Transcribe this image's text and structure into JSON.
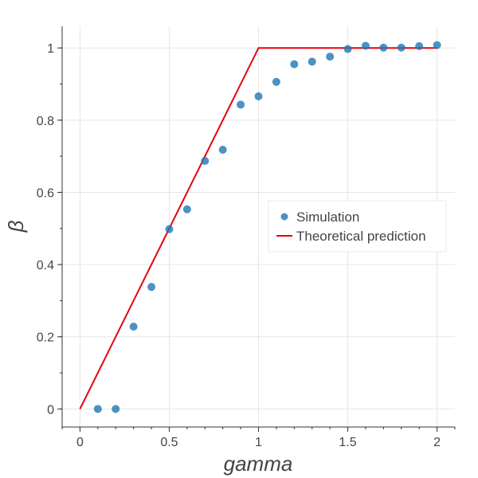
{
  "chart_data": {
    "type": "scatter",
    "title": "",
    "xlabel": "gamma",
    "ylabel": "β",
    "xlim": [
      -0.1,
      2.1
    ],
    "ylim": [
      -0.05,
      1.06
    ],
    "grid": true,
    "legend_position": "center-right",
    "x_ticks": [
      {
        "value": 0,
        "label": "0"
      },
      {
        "value": 0.5,
        "label": "0.5"
      },
      {
        "value": 1,
        "label": "1"
      },
      {
        "value": 1.5,
        "label": "1.5"
      },
      {
        "value": 2,
        "label": "2"
      }
    ],
    "y_ticks": [
      {
        "value": 0,
        "label": "0"
      },
      {
        "value": 0.2,
        "label": "0.2"
      },
      {
        "value": 0.4,
        "label": "0.4"
      },
      {
        "value": 0.6,
        "label": "0.6"
      },
      {
        "value": 0.8,
        "label": "0.8"
      },
      {
        "value": 1,
        "label": "1"
      }
    ],
    "series": [
      {
        "name": "Simulation",
        "kind": "scatter",
        "color": "#1f77b4",
        "x": [
          0.1,
          0.2,
          0.3,
          0.4,
          0.5,
          0.6,
          0.7,
          0.8,
          0.9,
          1.0,
          1.1,
          1.2,
          1.3,
          1.4,
          1.5,
          1.6,
          1.7,
          1.8,
          1.9,
          2.0
        ],
        "y": [
          0.0,
          0.0,
          0.228,
          0.338,
          0.498,
          0.553,
          0.687,
          0.718,
          0.843,
          0.866,
          0.906,
          0.955,
          0.962,
          0.976,
          0.997,
          1.006,
          1.001,
          1.001,
          1.005,
          1.008
        ]
      },
      {
        "name": "Theoretical prediction",
        "kind": "line",
        "color": "#e8000b",
        "x": [
          0,
          1,
          2
        ],
        "y": [
          0,
          1,
          1
        ]
      }
    ]
  }
}
